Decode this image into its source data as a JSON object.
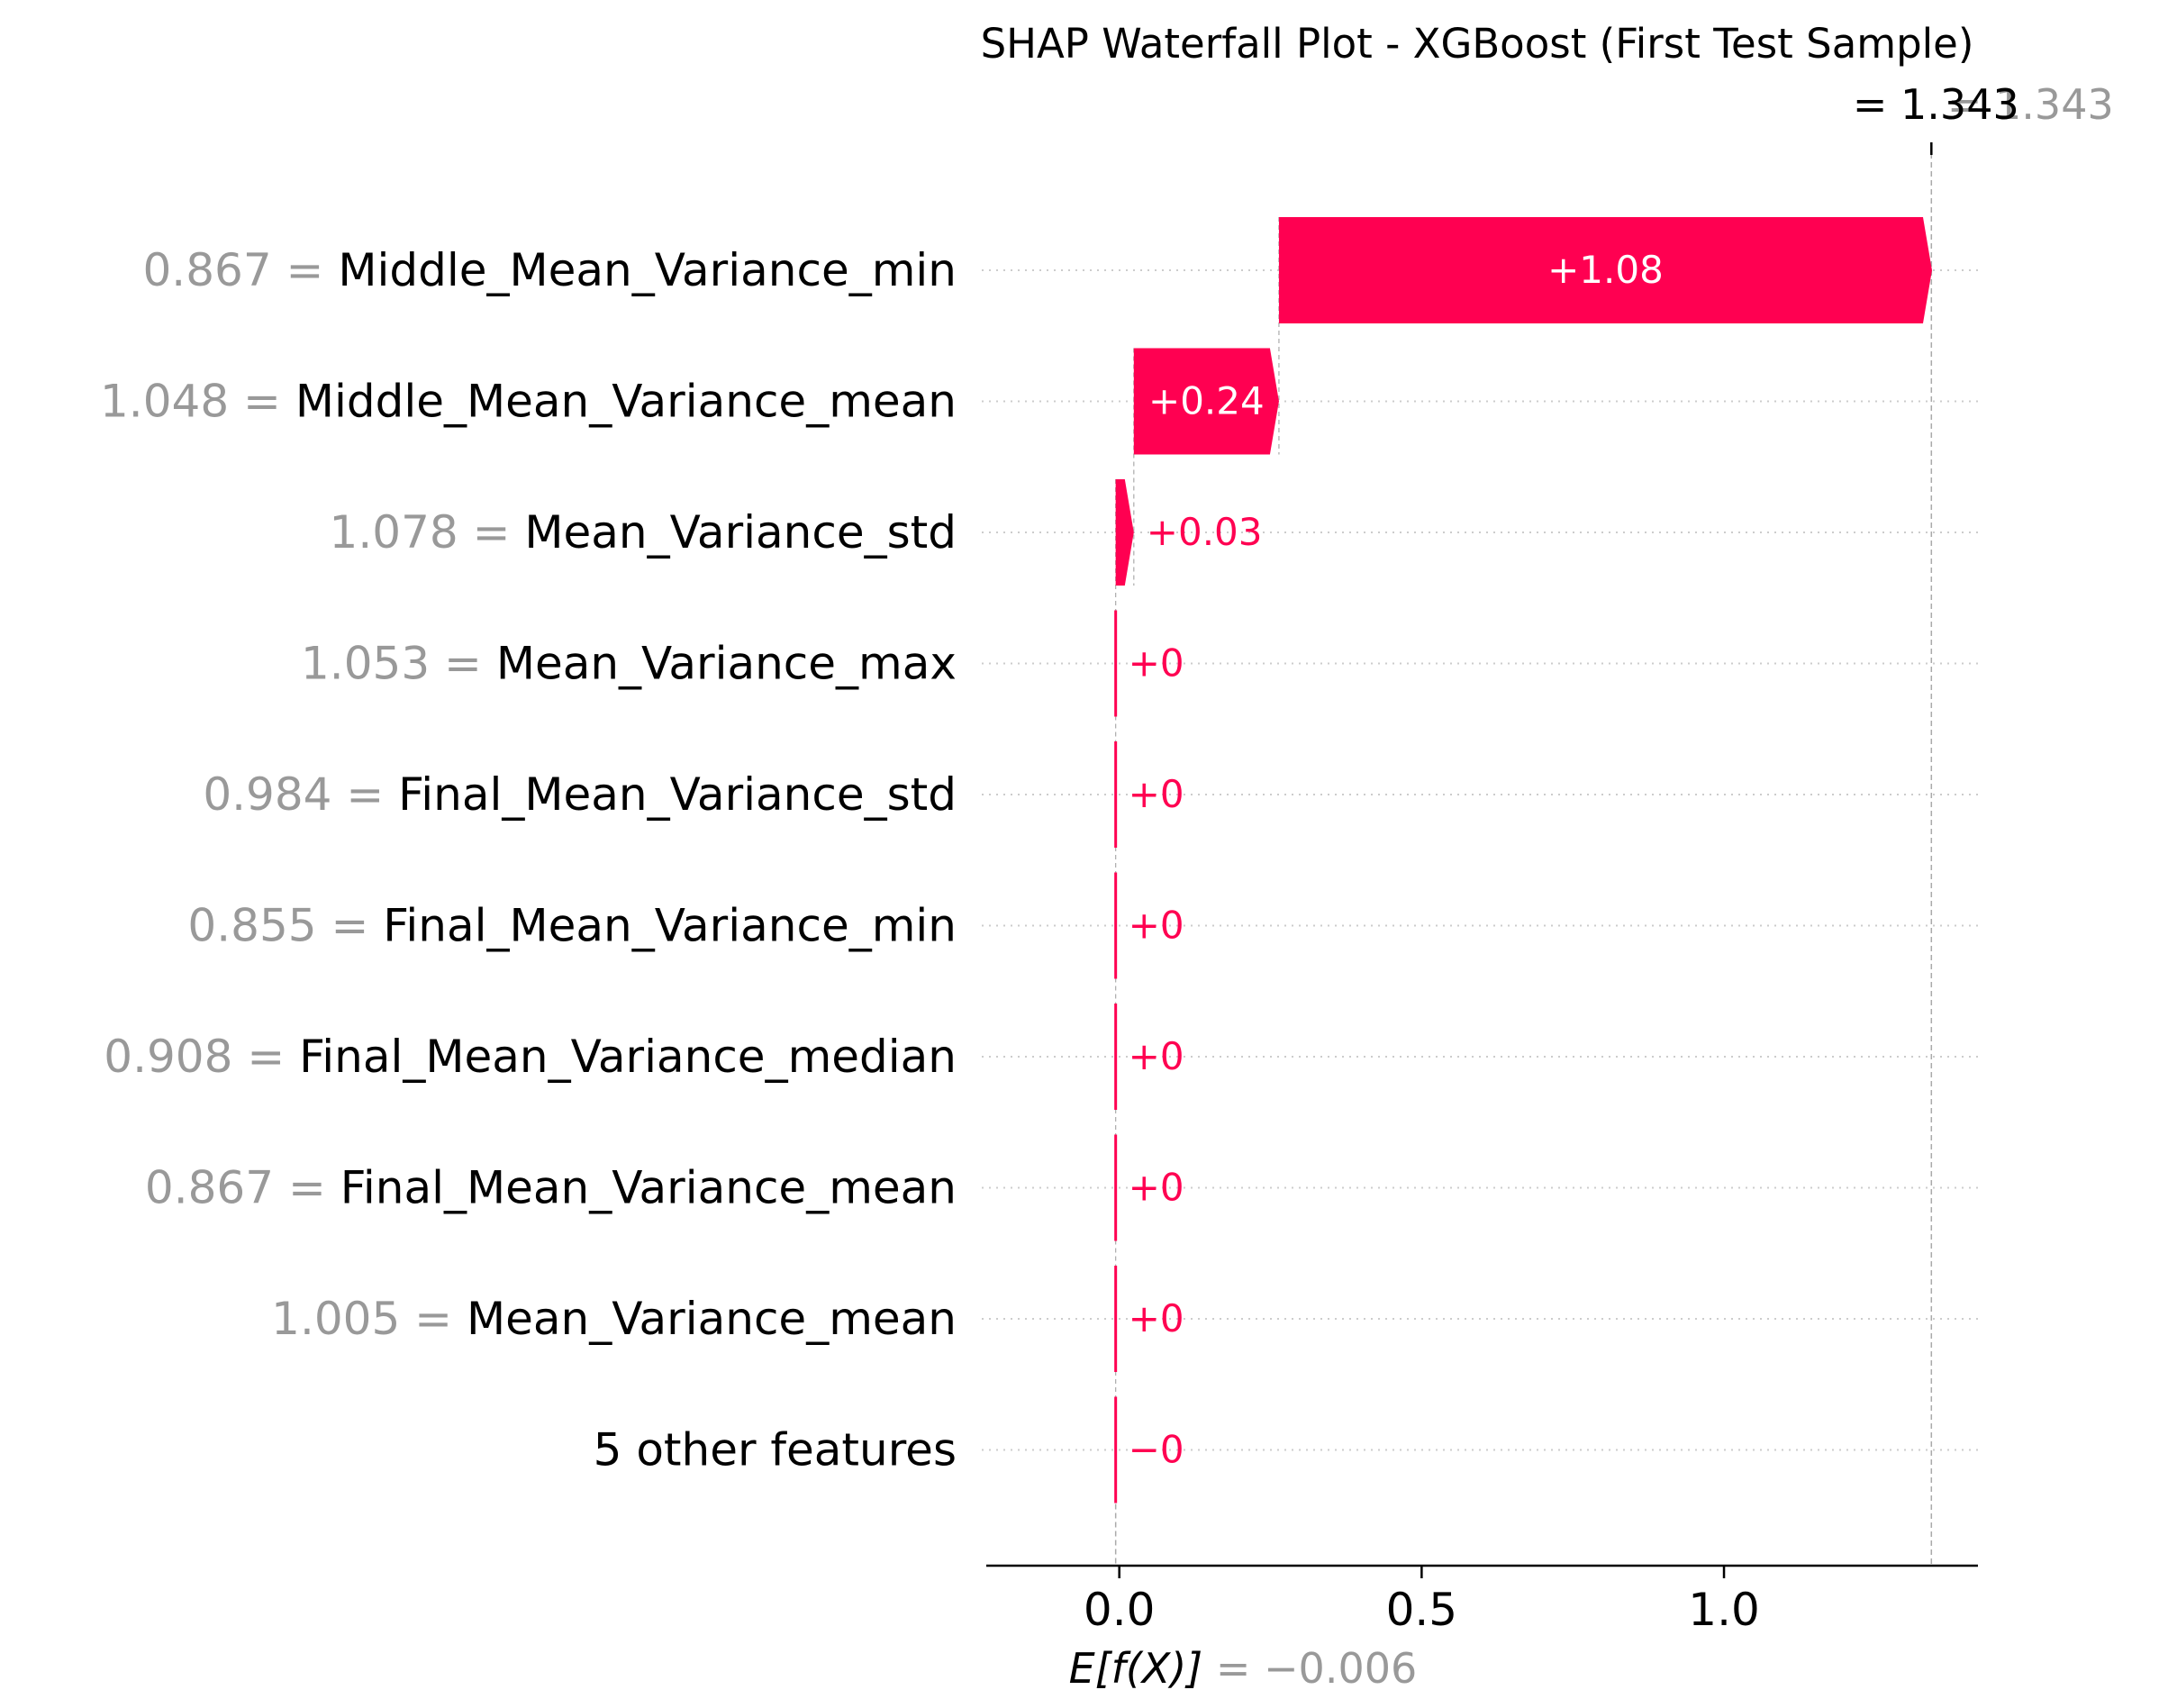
{
  "chart_data": {
    "type": "waterfall",
    "title": "SHAP Waterfall Plot - XGBoost (First Test Sample)",
    "base_value": -0.006,
    "base_label_prefix": "E[f(X)]",
    "base_label_value": "= −0.006",
    "output_value": 1.343,
    "output_label_black": "= 1.343",
    "output_label_gray": "= 1.343",
    "x_ticks": [
      {
        "value": 0.0,
        "label": "0.0"
      },
      {
        "value": 0.5,
        "label": "0.5"
      },
      {
        "value": 1.0,
        "label": "1.0"
      }
    ],
    "xlim": [
      -0.22,
      1.42
    ],
    "grid": "dotted-horizontal",
    "colors": {
      "positive": "#ff0051",
      "negative": "#008bfb",
      "feature_value": "#999999",
      "text": "#000000"
    },
    "features": [
      {
        "value_text": "0.867 =",
        "name": "Middle_Mean_Variance_min",
        "shap": 1.08,
        "label": "+1.08"
      },
      {
        "value_text": "1.048 =",
        "name": "Middle_Mean_Variance_mean",
        "shap": 0.24,
        "label": "+0.24"
      },
      {
        "value_text": "1.078 =",
        "name": "Mean_Variance_std",
        "shap": 0.03,
        "label": "+0.03"
      },
      {
        "value_text": "1.053 =",
        "name": "Mean_Variance_max",
        "shap": 0.0,
        "label": "+0"
      },
      {
        "value_text": "0.984 =",
        "name": "Final_Mean_Variance_std",
        "shap": 0.0,
        "label": "+0"
      },
      {
        "value_text": "0.855 =",
        "name": "Final_Mean_Variance_min",
        "shap": 0.0,
        "label": "+0"
      },
      {
        "value_text": "0.908 =",
        "name": "Final_Mean_Variance_median",
        "shap": 0.0,
        "label": "+0"
      },
      {
        "value_text": "0.867 =",
        "name": "Final_Mean_Variance_mean",
        "shap": 0.0,
        "label": "+0"
      },
      {
        "value_text": "1.005 =",
        "name": "Mean_Variance_mean",
        "shap": 0.0,
        "label": "+0"
      },
      {
        "value_text": "",
        "name": "5 other features",
        "shap": -0.0,
        "label": "−0"
      }
    ]
  }
}
